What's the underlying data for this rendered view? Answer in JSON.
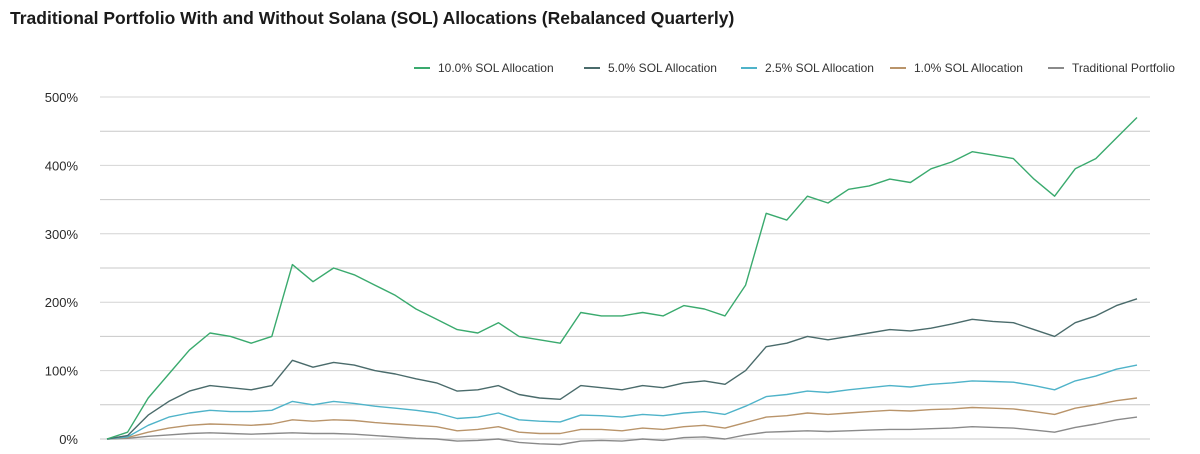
{
  "chart_data": {
    "type": "line",
    "title": "Traditional Portfolio With and Without Solana (SOL) Allocations (Rebalanced Quarterly)",
    "xlabel": "",
    "ylabel": "",
    "ylim": [
      -10,
      510
    ],
    "y_ticks": [
      "500%",
      "400%",
      "300%",
      "200%",
      "100%",
      "0%"
    ],
    "y_tick_values": [
      500,
      400,
      300,
      200,
      100,
      0
    ],
    "grid": "horizontal",
    "legend_position": "top-right",
    "x": [
      0,
      2,
      4,
      6,
      8,
      10,
      12,
      14,
      16,
      18,
      20,
      22,
      24,
      26,
      28,
      30,
      32,
      34,
      36,
      38,
      40,
      42,
      44,
      46,
      48,
      50,
      52,
      54,
      56,
      58,
      60,
      62,
      64,
      66,
      68,
      70,
      72,
      74,
      76,
      78,
      80,
      82,
      84,
      86,
      88,
      90,
      92,
      94,
      96,
      98,
      100
    ],
    "series": [
      {
        "name": "10.0% SOL Allocation",
        "color": "#3aaa6e",
        "values": [
          0,
          10,
          60,
          95,
          130,
          155,
          150,
          140,
          150,
          255,
          230,
          250,
          240,
          225,
          210,
          190,
          175,
          160,
          155,
          170,
          150,
          145,
          140,
          185,
          180,
          180,
          185,
          180,
          195,
          190,
          180,
          225,
          330,
          320,
          355,
          345,
          365,
          370,
          380,
          375,
          395,
          405,
          420,
          415,
          410,
          380,
          355,
          395,
          410,
          440,
          470
        ]
      },
      {
        "name": "5.0% SOL Allocation",
        "color": "#4a6b6b",
        "values": [
          0,
          5,
          35,
          55,
          70,
          78,
          75,
          72,
          78,
          115,
          105,
          112,
          108,
          100,
          95,
          88,
          82,
          70,
          72,
          78,
          65,
          60,
          58,
          78,
          75,
          72,
          78,
          75,
          82,
          85,
          80,
          100,
          135,
          140,
          150,
          145,
          150,
          155,
          160,
          158,
          162,
          168,
          175,
          172,
          170,
          160,
          150,
          170,
          180,
          195,
          205
        ]
      },
      {
        "name": "2.5% SOL Allocation",
        "color": "#4fb3c9",
        "values": [
          0,
          3,
          20,
          32,
          38,
          42,
          40,
          40,
          42,
          55,
          50,
          55,
          52,
          48,
          45,
          42,
          38,
          30,
          32,
          38,
          28,
          26,
          25,
          35,
          34,
          32,
          36,
          34,
          38,
          40,
          36,
          48,
          62,
          65,
          70,
          68,
          72,
          75,
          78,
          76,
          80,
          82,
          85,
          84,
          83,
          78,
          72,
          85,
          92,
          102,
          108
        ]
      },
      {
        "name": "1.0% SOL Allocation",
        "color": "#b9946a",
        "values": [
          0,
          2,
          10,
          16,
          20,
          22,
          21,
          20,
          22,
          28,
          26,
          28,
          27,
          24,
          22,
          20,
          18,
          12,
          14,
          18,
          10,
          8,
          8,
          14,
          14,
          12,
          16,
          14,
          18,
          20,
          16,
          24,
          32,
          34,
          38,
          36,
          38,
          40,
          42,
          41,
          43,
          44,
          46,
          45,
          44,
          40,
          36,
          45,
          50,
          56,
          60
        ]
      },
      {
        "name": "Traditional Portfolio",
        "color": "#8a8a8a",
        "values": [
          0,
          1,
          4,
          6,
          8,
          9,
          8,
          7,
          8,
          9,
          8,
          8,
          7,
          5,
          3,
          1,
          0,
          -3,
          -2,
          0,
          -5,
          -7,
          -8,
          -3,
          -2,
          -3,
          0,
          -2,
          2,
          3,
          0,
          6,
          10,
          11,
          12,
          11,
          12,
          13,
          14,
          14,
          15,
          16,
          18,
          17,
          16,
          13,
          10,
          17,
          22,
          28,
          32
        ]
      }
    ]
  }
}
